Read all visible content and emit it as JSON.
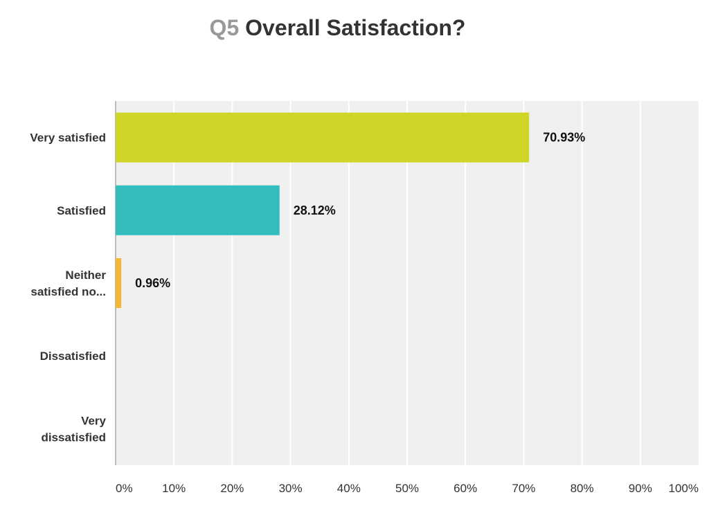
{
  "chart_data": {
    "type": "bar",
    "orientation": "horizontal",
    "title_prefix": "Q5",
    "title": "Overall Satisfaction?",
    "categories": [
      [
        "Very satisfied"
      ],
      [
        "Satisfied"
      ],
      [
        "Neither",
        "satisfied no..."
      ],
      [
        "Dissatisfied"
      ],
      [
        "Very",
        "dissatisfied"
      ]
    ],
    "values": [
      70.93,
      28.12,
      0.96,
      0,
      0
    ],
    "value_labels": [
      "70.93%",
      "28.12%",
      "0.96%",
      "",
      ""
    ],
    "colors": [
      "#cfd628",
      "#33bdbd",
      "#f6b631",
      "#e8754f",
      "#8f5fa6"
    ],
    "xlim": [
      0,
      100
    ],
    "xticks": [
      "0%",
      "10%",
      "20%",
      "30%",
      "40%",
      "50%",
      "60%",
      "70%",
      "80%",
      "90%",
      "100%"
    ],
    "grid": true,
    "plot_background": "#f0f0f0",
    "grid_color": "#ffffff"
  }
}
